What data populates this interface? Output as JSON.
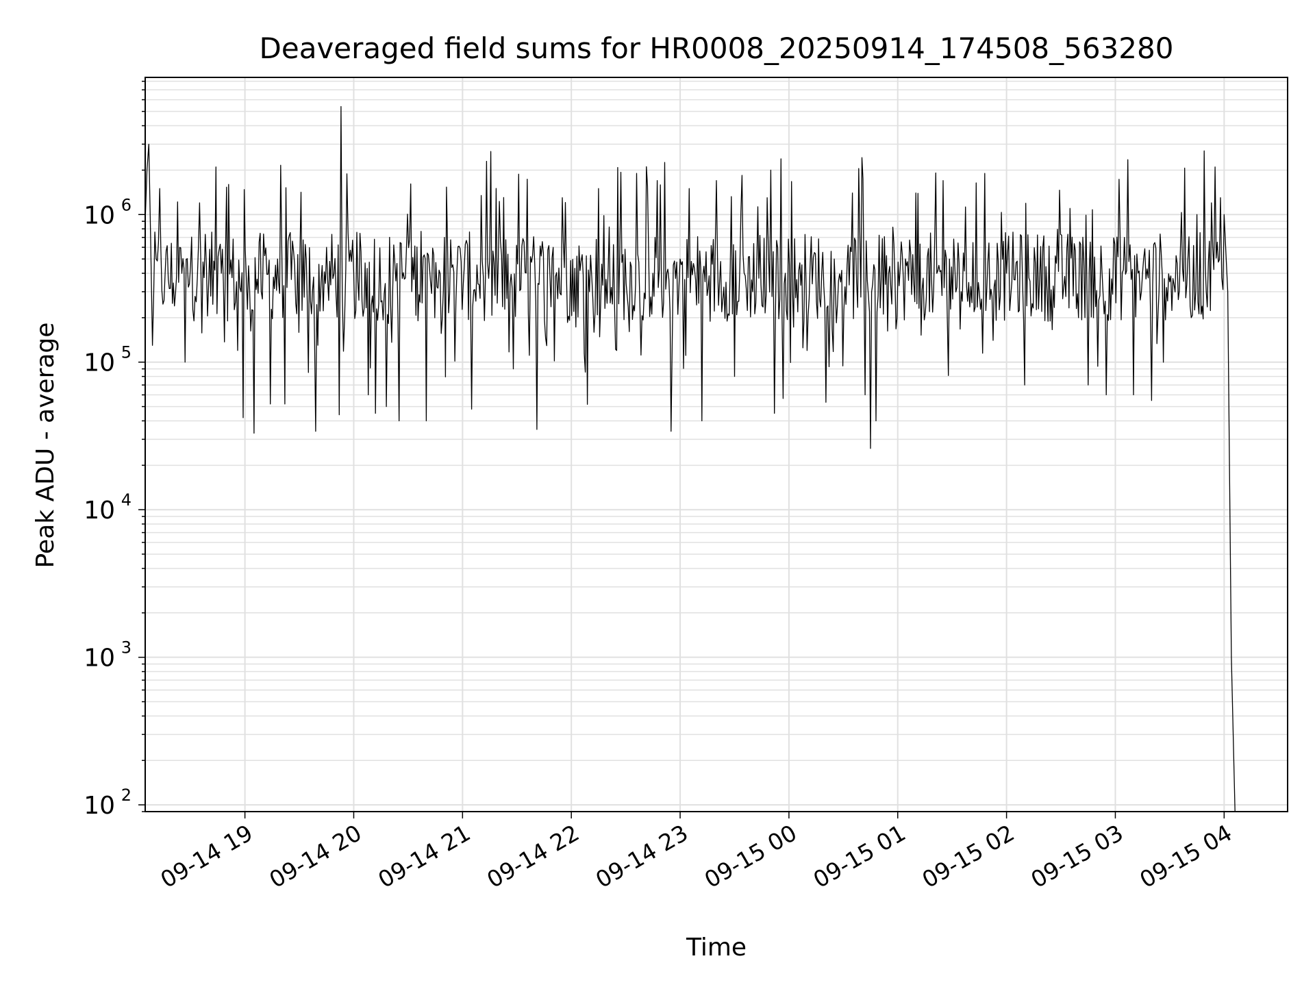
{
  "chart_data": {
    "type": "line",
    "title": "Deaveraged field sums for HR0008_20250914_174508_563280",
    "xlabel": "Time",
    "ylabel": "Peak ADU - average",
    "yscale": "log",
    "ylim": [
      90,
      8500000
    ],
    "xlim": [
      "2025-09-14 18:05",
      "2025-09-15 04:35"
    ],
    "grid": true,
    "line_color": "#000000",
    "grid_color": "#e0e0e0",
    "x_ticks": [
      {
        "t": "2025-09-14 19:00",
        "label": "09-14 19"
      },
      {
        "t": "2025-09-14 20:00",
        "label": "09-14 20"
      },
      {
        "t": "2025-09-14 21:00",
        "label": "09-14 21"
      },
      {
        "t": "2025-09-14 22:00",
        "label": "09-14 22"
      },
      {
        "t": "2025-09-14 23:00",
        "label": "09-14 23"
      },
      {
        "t": "2025-09-15 00:00",
        "label": "09-15 00"
      },
      {
        "t": "2025-09-15 01:00",
        "label": "09-15 01"
      },
      {
        "t": "2025-09-15 02:00",
        "label": "09-15 02"
      },
      {
        "t": "2025-09-15 03:00",
        "label": "09-15 03"
      },
      {
        "t": "2025-09-15 04:00",
        "label": "09-15 04"
      }
    ],
    "y_ticks": [
      {
        "v": 100,
        "base": "10",
        "exp": "2"
      },
      {
        "v": 1000,
        "base": "10",
        "exp": "3"
      },
      {
        "v": 10000,
        "base": "10",
        "exp": "4"
      },
      {
        "v": 100000,
        "base": "10",
        "exp": "5"
      },
      {
        "v": 1000000,
        "base": "10",
        "exp": "6"
      }
    ],
    "series": [
      {
        "points": [
          [
            "2025-09-14 18:05",
            900000
          ],
          [
            "2025-09-14 18:06",
            2000000
          ],
          [
            "2025-09-14 18:07",
            3000000
          ],
          [
            "2025-09-14 18:08",
            700000
          ],
          [
            "2025-09-14 18:09",
            130000
          ],
          [
            "2025-09-14 18:11",
            500000
          ],
          [
            "2025-09-14 18:13",
            1500000
          ],
          [
            "2025-09-14 18:16",
            400000
          ],
          [
            "2025-09-14 18:20",
            250000
          ],
          [
            "2025-09-14 18:24",
            600000
          ],
          [
            "2025-09-14 18:27",
            100000
          ],
          [
            "2025-09-14 18:30",
            450000
          ],
          [
            "2025-09-14 18:35",
            1200000
          ],
          [
            "2025-09-14 18:40",
            350000
          ],
          [
            "2025-09-14 18:44",
            2100000
          ],
          [
            "2025-09-14 18:47",
            400000
          ],
          [
            "2025-09-14 18:51",
            1600000
          ],
          [
            "2025-09-14 18:56",
            120000
          ],
          [
            "2025-09-14 18:59",
            42000
          ],
          [
            "2025-09-14 19:02",
            450000
          ],
          [
            "2025-09-14 19:05",
            33000
          ],
          [
            "2025-09-14 19:09",
            300000
          ],
          [
            "2025-09-14 19:14",
            52000
          ],
          [
            "2025-09-14 19:18",
            500000
          ],
          [
            "2025-09-14 19:22",
            52000
          ],
          [
            "2025-09-14 19:28",
            250000
          ],
          [
            "2025-09-14 19:35",
            85000
          ],
          [
            "2025-09-14 19:39",
            34000
          ],
          [
            "2025-09-14 19:45",
            600000
          ],
          [
            "2025-09-14 19:52",
            44000
          ],
          [
            "2025-09-14 19:53",
            5400000
          ],
          [
            "2025-09-14 19:55",
            200000
          ],
          [
            "2025-09-14 20:00",
            400000
          ],
          [
            "2025-09-14 20:08",
            60000
          ],
          [
            "2025-09-14 20:12",
            45000
          ],
          [
            "2025-09-14 20:18",
            50000
          ],
          [
            "2025-09-14 20:25",
            40000
          ],
          [
            "2025-09-14 20:32",
            300000
          ],
          [
            "2025-09-14 20:40",
            40000
          ],
          [
            "2025-09-14 20:50",
            700000
          ],
          [
            "2025-09-14 21:05",
            48000
          ],
          [
            "2025-09-14 21:15",
            500000
          ],
          [
            "2025-09-14 21:28",
            90000
          ],
          [
            "2025-09-14 21:41",
            35000
          ],
          [
            "2025-09-14 21:50",
            600000
          ],
          [
            "2025-09-14 21:55",
            1300000
          ],
          [
            "2025-09-14 22:10",
            300000
          ],
          [
            "2025-09-14 22:15",
            1500000
          ],
          [
            "2025-09-14 22:25",
            120000
          ],
          [
            "2025-09-14 22:36",
            1900000
          ],
          [
            "2025-09-14 22:45",
            400000
          ],
          [
            "2025-09-14 22:55",
            34000
          ],
          [
            "2025-09-14 23:00",
            500000
          ],
          [
            "2025-09-14 23:05",
            1500000
          ],
          [
            "2025-09-14 23:12",
            40000
          ],
          [
            "2025-09-14 23:20",
            1700000
          ],
          [
            "2025-09-14 23:30",
            80000
          ],
          [
            "2025-09-14 23:40",
            300000
          ],
          [
            "2025-09-14 23:48",
            1300000
          ],
          [
            "2025-09-14 23:50",
            2000000
          ],
          [
            "2025-09-14 23:52",
            45000
          ],
          [
            "2025-09-14 23:58",
            400000
          ],
          [
            "2025-09-15 00:10",
            120000
          ],
          [
            "2025-09-15 00:25",
            500000
          ],
          [
            "2025-09-15 00:35",
            1400000
          ],
          [
            "2025-09-15 00:42",
            60000
          ],
          [
            "2025-09-15 00:45",
            26000
          ],
          [
            "2025-09-15 00:48",
            40000
          ],
          [
            "2025-09-15 00:55",
            400000
          ],
          [
            "2025-09-15 01:10",
            1400000
          ],
          [
            "2025-09-15 01:25",
            1700000
          ],
          [
            "2025-09-15 01:35",
            300000
          ],
          [
            "2025-09-15 01:48",
            1900000
          ],
          [
            "2025-09-15 02:00",
            400000
          ],
          [
            "2025-09-15 02:10",
            70000
          ],
          [
            "2025-09-15 02:20",
            600000
          ],
          [
            "2025-09-15 02:35",
            1100000
          ],
          [
            "2025-09-15 02:45",
            70000
          ],
          [
            "2025-09-15 02:55",
            60000
          ],
          [
            "2025-09-15 03:05",
            700000
          ],
          [
            "2025-09-15 03:10",
            60000
          ],
          [
            "2025-09-15 03:15",
            400000
          ],
          [
            "2025-09-15 03:20",
            55000
          ],
          [
            "2025-09-15 03:30",
            350000
          ],
          [
            "2025-09-15 03:40",
            500000
          ],
          [
            "2025-09-15 03:45",
            1000000
          ],
          [
            "2025-09-15 03:49",
            2700000
          ],
          [
            "2025-09-15 03:53",
            1200000
          ],
          [
            "2025-09-15 03:55",
            2100000
          ],
          [
            "2025-09-15 03:58",
            1300000
          ],
          [
            "2025-09-15 04:00",
            1000000
          ],
          [
            "2025-09-15 04:02",
            300000
          ],
          [
            "2025-09-15 04:04",
            1000
          ],
          [
            "2025-09-15 04:06",
            90
          ]
        ]
      }
    ]
  }
}
